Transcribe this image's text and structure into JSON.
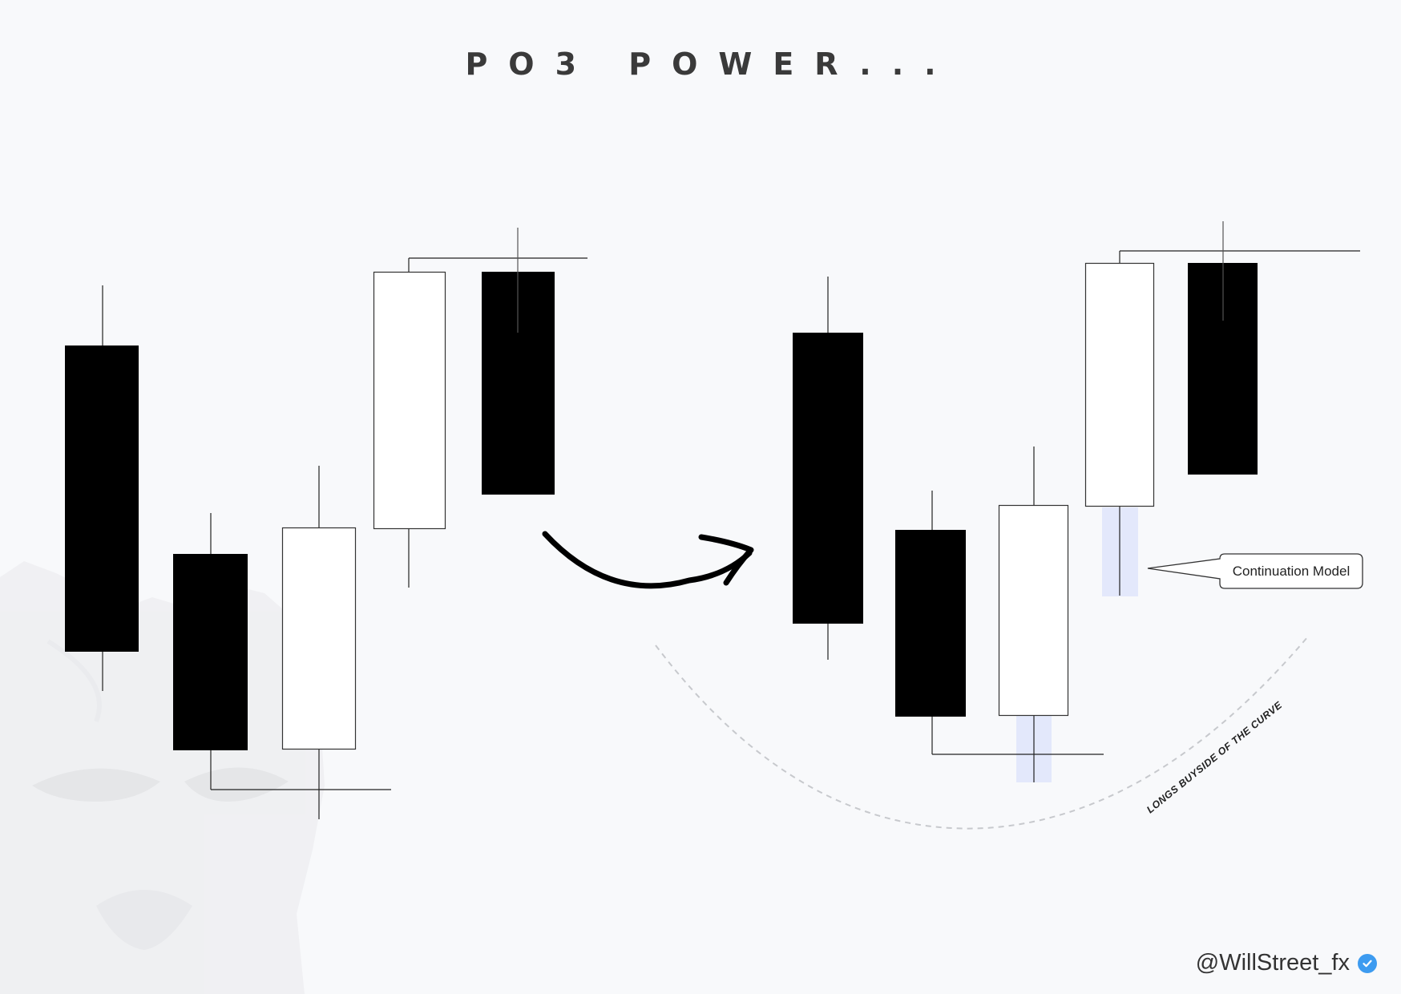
{
  "title": "PO3 POWER...",
  "callout": {
    "label": "Continuation Model"
  },
  "curve_label": "LONGS BUYSIDE OF THE CURVE",
  "handle": {
    "text": "@WillStreet_fx",
    "badge_icon": "verified-check-icon"
  },
  "colors": {
    "background": "#f8f9fb",
    "bearish_body": "#000000",
    "bullish_body": "#ffffff",
    "title": "#3a3a3a",
    "highlight": "#e3e8fb",
    "verified_badge": "#3d9bf0"
  },
  "watermark_icon": "wolf-head-icon",
  "transition_icon": "curved-arrow-icon"
}
